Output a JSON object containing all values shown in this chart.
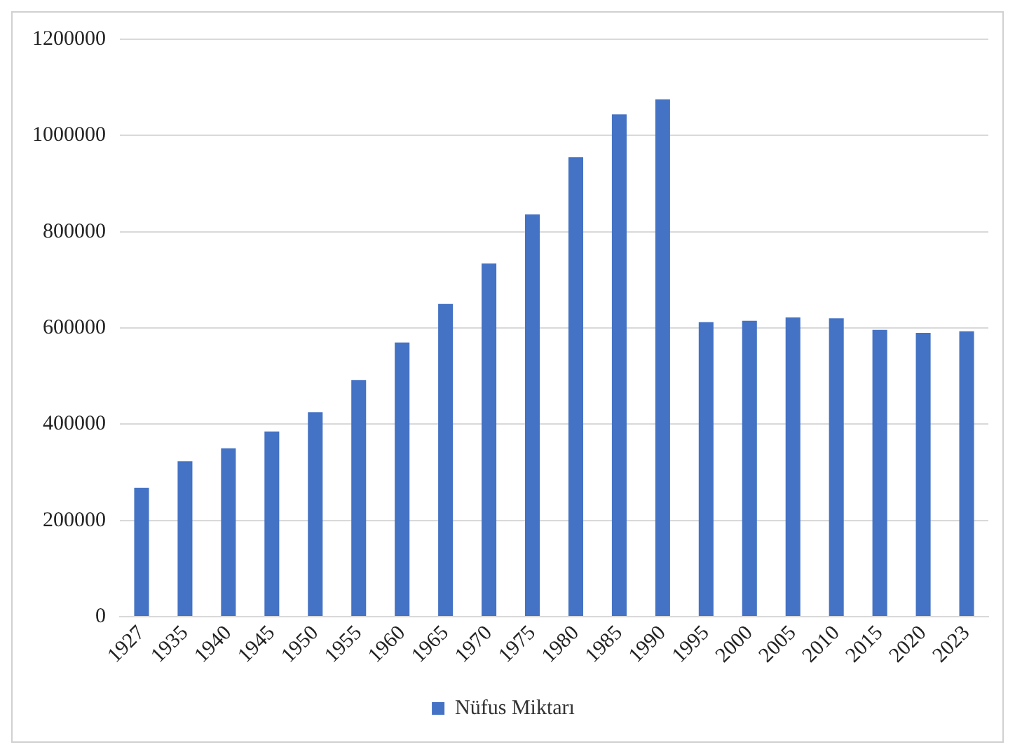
{
  "chart_data": {
    "type": "bar",
    "categories": [
      "1927",
      "1935",
      "1940",
      "1945",
      "1950",
      "1955",
      "1960",
      "1965",
      "1970",
      "1975",
      "1980",
      "1985",
      "1990",
      "1995",
      "2000",
      "2005",
      "2010",
      "2015",
      "2020",
      "2023"
    ],
    "series": [
      {
        "name": "Nüfus Miktarı",
        "color": "#4472c4",
        "values": [
          268000,
          323000,
          350000,
          385000,
          425000,
          492000,
          570000,
          650000,
          734000,
          836000,
          955000,
          1044000,
          1075000,
          612000,
          615000,
          622000,
          620000,
          596000,
          590000,
          593000
        ]
      }
    ],
    "ylim": [
      0,
      1200000
    ],
    "yticks": [
      0,
      200000,
      400000,
      600000,
      800000,
      1000000,
      1200000
    ],
    "grid": "y",
    "legend": "bottom"
  }
}
